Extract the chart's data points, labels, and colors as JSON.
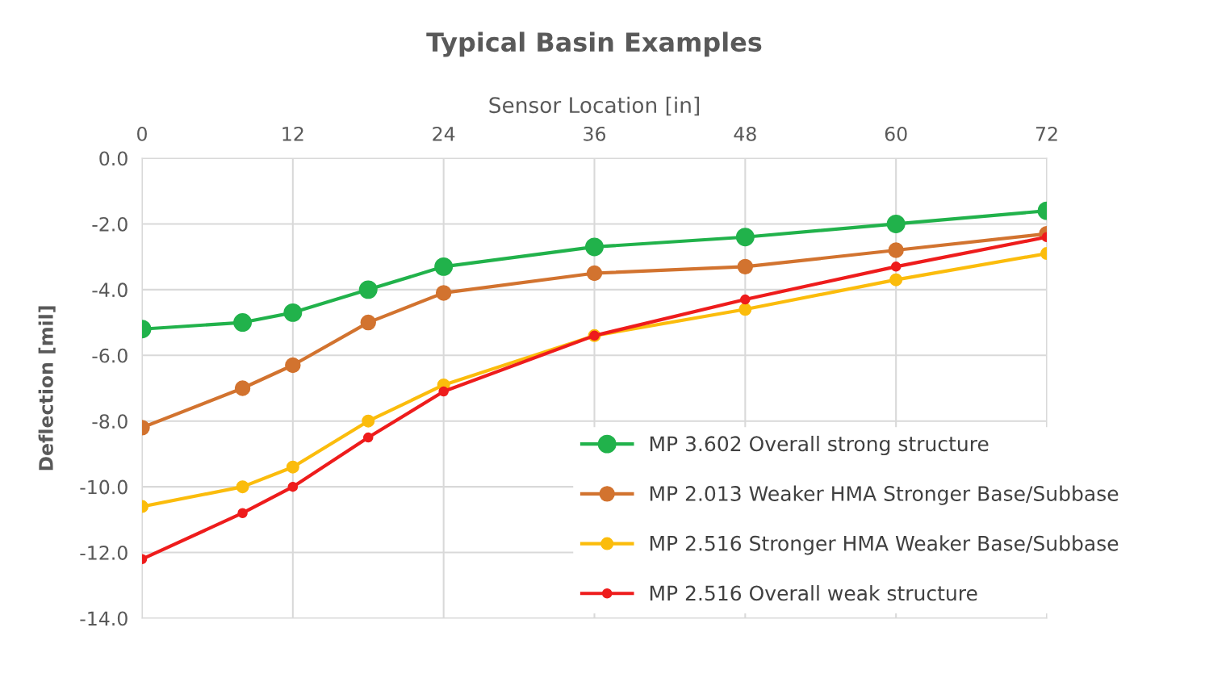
{
  "chart_data": {
    "type": "line",
    "title": "Typical Basin Examples",
    "xlabel": "Sensor Location [in]",
    "ylabel": "Deflection [mil]",
    "x": [
      0,
      8,
      12,
      18,
      24,
      36,
      48,
      60,
      72
    ],
    "xlim": [
      0,
      72
    ],
    "xticks": [
      0,
      12,
      24,
      36,
      48,
      60,
      72
    ],
    "ylim": [
      -14,
      0
    ],
    "yticks": [
      {
        "value": -14,
        "label": "-14.0"
      },
      {
        "value": -12,
        "label": "-12.0"
      },
      {
        "value": -10,
        "label": "-10.0"
      },
      {
        "value": -8,
        "label": "-8.0"
      },
      {
        "value": -6,
        "label": "-6.0"
      },
      {
        "value": -4,
        "label": "-4.0"
      },
      {
        "value": -2,
        "label": "-2.0"
      },
      {
        "value": 0,
        "label": "0.0"
      }
    ],
    "grid": true,
    "legend": "bottom right",
    "marker": "circle",
    "line_style": "solid",
    "series": [
      {
        "name": "MP 3.602 Overall strong structure",
        "color": "#21b24b",
        "values": [
          -5.2,
          -5.0,
          -4.7,
          -4.0,
          -3.3,
          -2.7,
          -2.4,
          -2.0,
          -1.6
        ]
      },
      {
        "name": "MP 2.013 Weaker HMA Stronger Base/Subbase",
        "color": "#d2732f",
        "values": [
          -8.2,
          -7.0,
          -6.3,
          -5.0,
          -4.1,
          -3.5,
          -3.3,
          -2.8,
          -2.3
        ]
      },
      {
        "name": "MP 2.516 Stronger HMA Weaker Base/Subbase",
        "color": "#fbbc0c",
        "values": [
          -10.6,
          -10.0,
          -9.4,
          -8.0,
          -6.9,
          -5.4,
          -4.6,
          -3.7,
          -2.9
        ]
      },
      {
        "name": "MP 2.516 Overall weak structure",
        "color": "#ee1c1c",
        "values": [
          -12.2,
          -10.8,
          -10.0,
          -8.5,
          -7.1,
          -5.4,
          -4.3,
          -3.3,
          -2.4
        ]
      }
    ]
  }
}
